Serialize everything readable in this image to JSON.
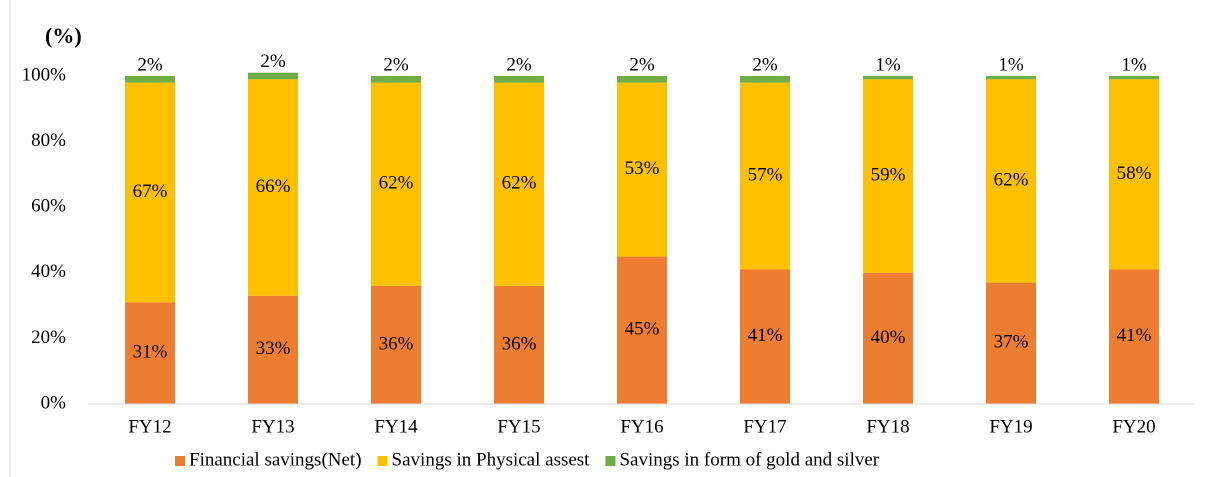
{
  "chart_data": {
    "type": "stacked_bar",
    "title": "(%)",
    "categories": [
      "FY12",
      "FY13",
      "FY14",
      "FY15",
      "FY16",
      "FY17",
      "FY18",
      "FY19",
      "FY20"
    ],
    "series": [
      {
        "name": "Financial savings(Net)",
        "color": "#ED7D31",
        "values": [
          31,
          33,
          36,
          36,
          45,
          41,
          40,
          37,
          41
        ],
        "value_labels": [
          "31%",
          "33%",
          "36%",
          "36%",
          "45%",
          "41%",
          "40%",
          "37%",
          "41%"
        ]
      },
      {
        "name": "Savings in Physical assest",
        "color": "#FFC000",
        "values": [
          67,
          66,
          62,
          62,
          53,
          57,
          59,
          62,
          58
        ],
        "value_labels": [
          "67%",
          "66%",
          "62%",
          "62%",
          "53%",
          "57%",
          "59%",
          "62%",
          "58%"
        ]
      },
      {
        "name": "Savings in form of gold and silver",
        "color": "#70AD47",
        "values": [
          2,
          2,
          2,
          2,
          2,
          2,
          1,
          1,
          1
        ],
        "value_labels": [
          "2%",
          "2%",
          "2%",
          "2%",
          "2%",
          "2%",
          "1%",
          "1%",
          "1%"
        ]
      }
    ],
    "ylim": [
      0,
      100
    ],
    "yticks": [
      {
        "value": 0,
        "label": "0%"
      },
      {
        "value": 20,
        "label": "20%"
      },
      {
        "value": 40,
        "label": "40%"
      },
      {
        "value": 60,
        "label": "60%"
      },
      {
        "value": 80,
        "label": "80%"
      },
      {
        "value": 100,
        "label": "100%"
      }
    ],
    "grid": false,
    "legend": "bottom"
  }
}
